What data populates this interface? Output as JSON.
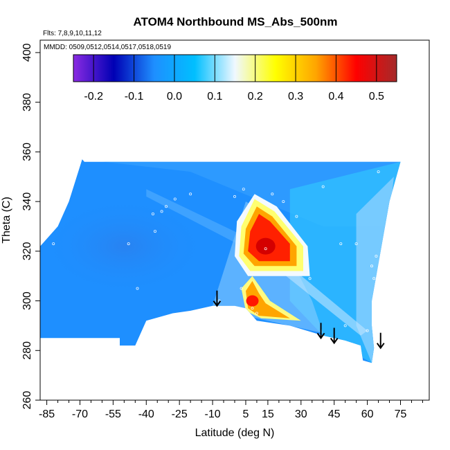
{
  "chart_data": {
    "type": "heatmap",
    "title": "ATOM4 Northbound MS_Abs_500nm",
    "subtitle_flights": "Flts: 7,8,9,10,11,12",
    "subtitle_dates": "MMDD: 0509,0512,0514,0517,0518,0519",
    "xlabel": "Latitude (deg N)",
    "ylabel": "Theta (C)",
    "xlim": [
      -88,
      88
    ],
    "ylim": [
      260,
      405
    ],
    "x_ticks": [
      -85,
      -70,
      -55,
      -40,
      -25,
      -10,
      5,
      15,
      30,
      45,
      60,
      75
    ],
    "x_minor_ticks": [
      -80,
      -75,
      -65,
      -60,
      -50,
      -45,
      -35,
      -30,
      -20,
      -15,
      -5,
      0,
      10,
      20,
      25,
      35,
      40,
      50,
      55,
      65,
      70,
      80,
      85
    ],
    "y_ticks": [
      260,
      280,
      300,
      320,
      340,
      360,
      380,
      400
    ],
    "colorbar": {
      "min": -0.25,
      "max": 0.55,
      "ticks": [
        -0.2,
        -0.1,
        0.0,
        0.1,
        0.2,
        0.3,
        0.4,
        0.5
      ],
      "tick_labels": [
        "-0.2",
        "-0.1",
        "0.0",
        "0.1",
        "0.2",
        "0.3",
        "0.4",
        "0.5"
      ],
      "colors": [
        "#8a2be2",
        "#0000b4",
        "#1e8fff",
        "#00bfff",
        "#f0f8ff",
        "#ffff00",
        "#ffa500",
        "#ff0000",
        "#a52a2a"
      ]
    },
    "field_value_background": 0.0,
    "hotspots": [
      {
        "lat": 14,
        "theta": 322,
        "value": 0.5
      },
      {
        "lat": 8,
        "theta": 300,
        "value": 0.38
      }
    ],
    "top_boundary": [
      [
        -69,
        357
      ],
      [
        -68,
        356
      ],
      [
        75,
        356
      ]
    ],
    "left_boundary": [
      [
        -88,
        285
      ],
      [
        -88,
        322
      ],
      [
        -80,
        330
      ],
      [
        -75,
        340
      ],
      [
        -69,
        357
      ]
    ],
    "right_boundary": [
      [
        75,
        356
      ],
      [
        70,
        340
      ],
      [
        66,
        320
      ],
      [
        64,
        310
      ],
      [
        62,
        300
      ],
      [
        62,
        290
      ],
      [
        63,
        281
      ],
      [
        62,
        275
      ]
    ],
    "bottom_boundary": [
      [
        -88,
        285
      ],
      [
        -52,
        285
      ],
      [
        -52,
        282
      ],
      [
        -45,
        282
      ],
      [
        -40,
        292
      ],
      [
        -28,
        295
      ],
      [
        -20,
        296
      ],
      [
        -10,
        298
      ],
      [
        0,
        298
      ],
      [
        5,
        297
      ],
      [
        10,
        292
      ],
      [
        25,
        290
      ],
      [
        40,
        286
      ],
      [
        50,
        284
      ],
      [
        57,
        282
      ],
      [
        58,
        276
      ],
      [
        62,
        275
      ]
    ],
    "sample_points": [
      [
        -82,
        323
      ],
      [
        -48,
        323
      ],
      [
        -44,
        305
      ],
      [
        -39,
        291
      ],
      [
        -37,
        335
      ],
      [
        -36,
        328
      ],
      [
        -33,
        336
      ],
      [
        -31,
        338
      ],
      [
        -27,
        341
      ],
      [
        -20,
        343
      ],
      [
        -7,
        300
      ],
      [
        0,
        342
      ],
      [
        3,
        305
      ],
      [
        4,
        345
      ],
      [
        8,
        297
      ],
      [
        10,
        295
      ],
      [
        14,
        321
      ],
      [
        17,
        343
      ],
      [
        22,
        340
      ],
      [
        28,
        334
      ],
      [
        34,
        309
      ],
      [
        40,
        346
      ],
      [
        48,
        323
      ],
      [
        50,
        290
      ],
      [
        55,
        323
      ],
      [
        60,
        288
      ],
      [
        62,
        314
      ],
      [
        63,
        309
      ],
      [
        64,
        318
      ],
      [
        65,
        352
      ],
      [
        70,
        325
      ]
    ],
    "arrows": [
      {
        "lat": -8,
        "theta": 298
      },
      {
        "lat": 39,
        "theta": 285
      },
      {
        "lat": 45,
        "theta": 283
      },
      {
        "lat": 66,
        "theta": 281
      }
    ]
  }
}
